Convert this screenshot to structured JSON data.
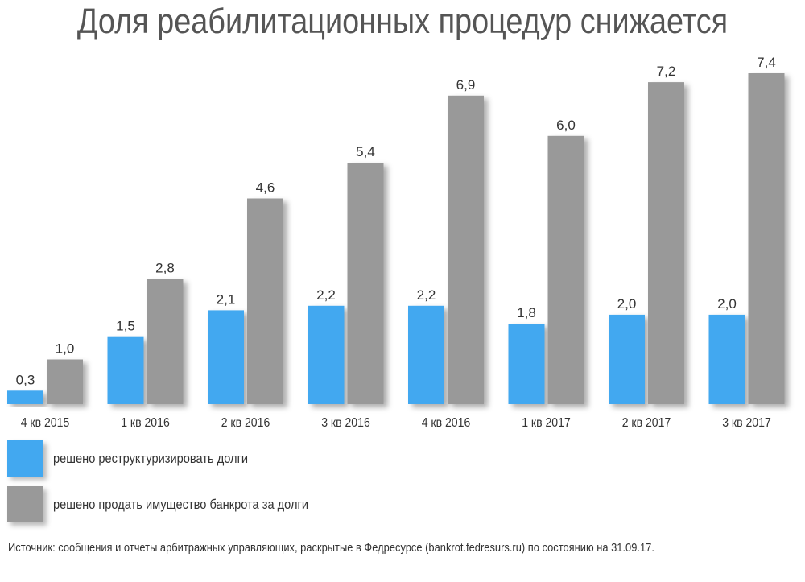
{
  "chart_data": {
    "type": "bar",
    "title": "Доля реабилитационных процедур снижается",
    "xlabel": "",
    "ylabel": "",
    "ylim": [
      0,
      8
    ],
    "grid": false,
    "legend_placement": "bottom-left",
    "categories": [
      "4 кв 2015",
      "1 кв 2016",
      "2 кв 2016",
      "3 кв 2016",
      "4 кв 2016",
      "1 кв 2017",
      "2 кв 2017",
      "3 кв 2017"
    ],
    "series": [
      {
        "name": "решено реструктуризировать долги",
        "color": "#42A8F0",
        "values": [
          0.3,
          1.5,
          2.1,
          2.2,
          2.2,
          1.8,
          2.0,
          2.0
        ],
        "labels": [
          "0,3",
          "1,5",
          "2,1",
          "2,2",
          "2,2",
          "1,8",
          "2,0",
          "2,0"
        ]
      },
      {
        "name": "решено продать имущество банкрота за долги",
        "color": "#999999",
        "values": [
          1.0,
          2.8,
          4.6,
          5.4,
          6.9,
          6.0,
          7.2,
          7.4
        ],
        "labels": [
          "1,0",
          "2,8",
          "4,6",
          "5,4",
          "6,9",
          "6,0",
          "7,2",
          "7,4"
        ]
      }
    ]
  },
  "source": "Источник: сообщения и отчеты арбитражных управляющих, раскрытые в Федресурсе (bankrot.fedresurs.ru) по состоянию на 31.09.17."
}
